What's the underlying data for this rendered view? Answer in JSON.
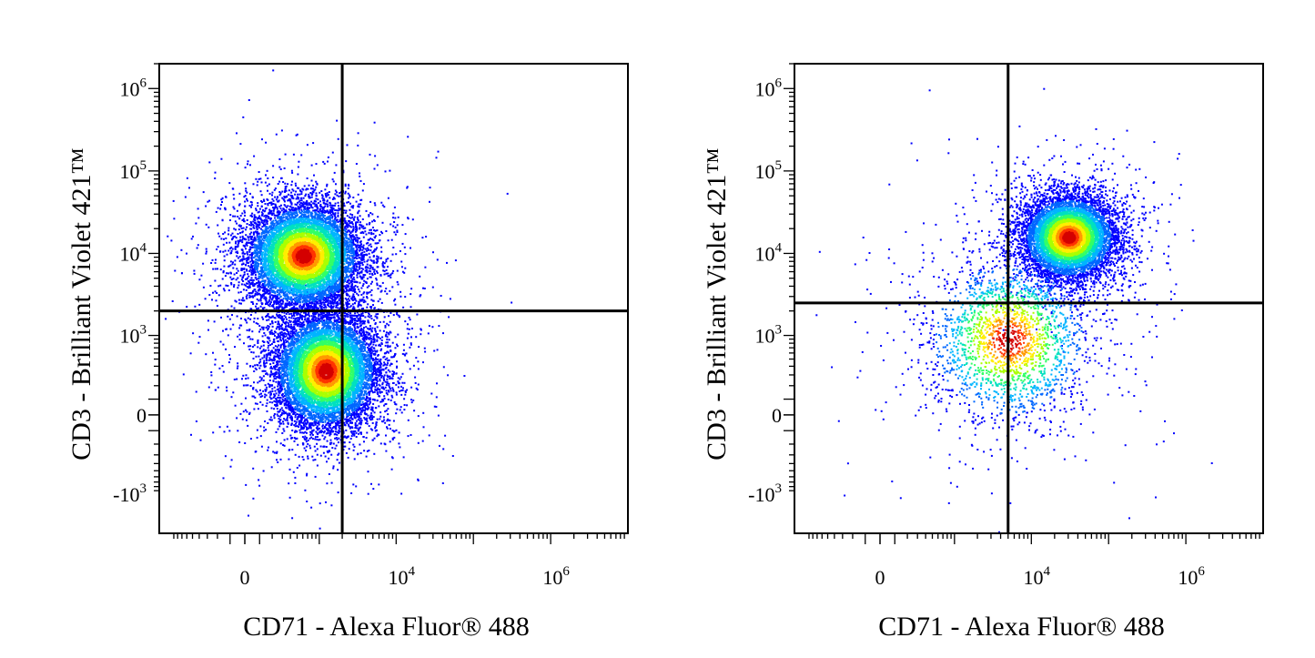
{
  "colors": {
    "density_scale": [
      "#0000ff",
      "#0066ff",
      "#00b4ff",
      "#00e0c0",
      "#33ff66",
      "#aaff00",
      "#ffee00",
      "#ff9900",
      "#ff3300",
      "#d40000"
    ],
    "gate_line": "#000000",
    "frame": "#000000"
  },
  "chart_data": [
    {
      "type": "scatter",
      "style": "density dot plot with quadrant gate",
      "xlabel": "CD71 - Alexa Fluor® 488",
      "ylabel": "CD3 - Brilliant Violet 421™",
      "x_scale": "biexponential",
      "y_scale": "biexponential",
      "x_ticks": [
        {
          "base": "0",
          "exp": "",
          "value": 0
        },
        {
          "base": "10",
          "exp": "4",
          "value": 10000
        },
        {
          "base": "10",
          "exp": "6",
          "value": 1000000
        }
      ],
      "y_ticks": [
        {
          "base": "10",
          "exp": "6",
          "value": 1000000
        },
        {
          "base": "10",
          "exp": "5",
          "value": 100000
        },
        {
          "base": "10",
          "exp": "4",
          "value": 10000
        },
        {
          "base": "10",
          "exp": "3",
          "value": 1000
        },
        {
          "base": "0",
          "exp": "",
          "value": 0
        },
        {
          "base": "-10",
          "exp": "3",
          "value": -1000
        }
      ],
      "xlim": [
        -1400,
        10000000
      ],
      "ylim": [
        -3000,
        2000000
      ],
      "quadrant_gate": {
        "x": 2000,
        "y": 2000
      },
      "populations": [
        {
          "name": "",
          "peak": [
            600,
            9500
          ],
          "count": 9000,
          "spread_x": 0.55,
          "spread_y": 0.5
        },
        {
          "name": "",
          "peak": [
            1200,
            350
          ],
          "count": 9500,
          "spread_x": 0.5,
          "spread_y": 0.55
        }
      ],
      "grid": false,
      "legend": "none"
    },
    {
      "type": "scatter",
      "style": "density dot plot with quadrant gate",
      "xlabel": "CD71 - Alexa Fluor® 488",
      "ylabel": "CD3 - Brilliant Violet 421™",
      "x_scale": "biexponential",
      "y_scale": "biexponential",
      "x_ticks": [
        {
          "base": "0",
          "exp": "",
          "value": 0
        },
        {
          "base": "10",
          "exp": "4",
          "value": 10000
        },
        {
          "base": "10",
          "exp": "6",
          "value": 1000000
        }
      ],
      "y_ticks": [
        {
          "base": "10",
          "exp": "6",
          "value": 1000000
        },
        {
          "base": "10",
          "exp": "5",
          "value": 100000
        },
        {
          "base": "10",
          "exp": "4",
          "value": 10000
        },
        {
          "base": "10",
          "exp": "3",
          "value": 1000
        },
        {
          "base": "0",
          "exp": "",
          "value": 0
        },
        {
          "base": "-10",
          "exp": "3",
          "value": -1000
        }
      ],
      "xlim": [
        -1400,
        10000000
      ],
      "ylim": [
        -3000,
        2000000
      ],
      "quadrant_gate": {
        "x": 5000,
        "y": 2500
      },
      "populations": [
        {
          "name": "",
          "peak": [
            30000,
            16000
          ],
          "count": 7500,
          "spread_x": 0.45,
          "spread_y": 0.4
        },
        {
          "name": "",
          "peak": [
            5000,
            900
          ],
          "count": 2200,
          "spread_x": 0.8,
          "spread_y": 0.8
        }
      ],
      "grid": false,
      "legend": "none"
    }
  ]
}
